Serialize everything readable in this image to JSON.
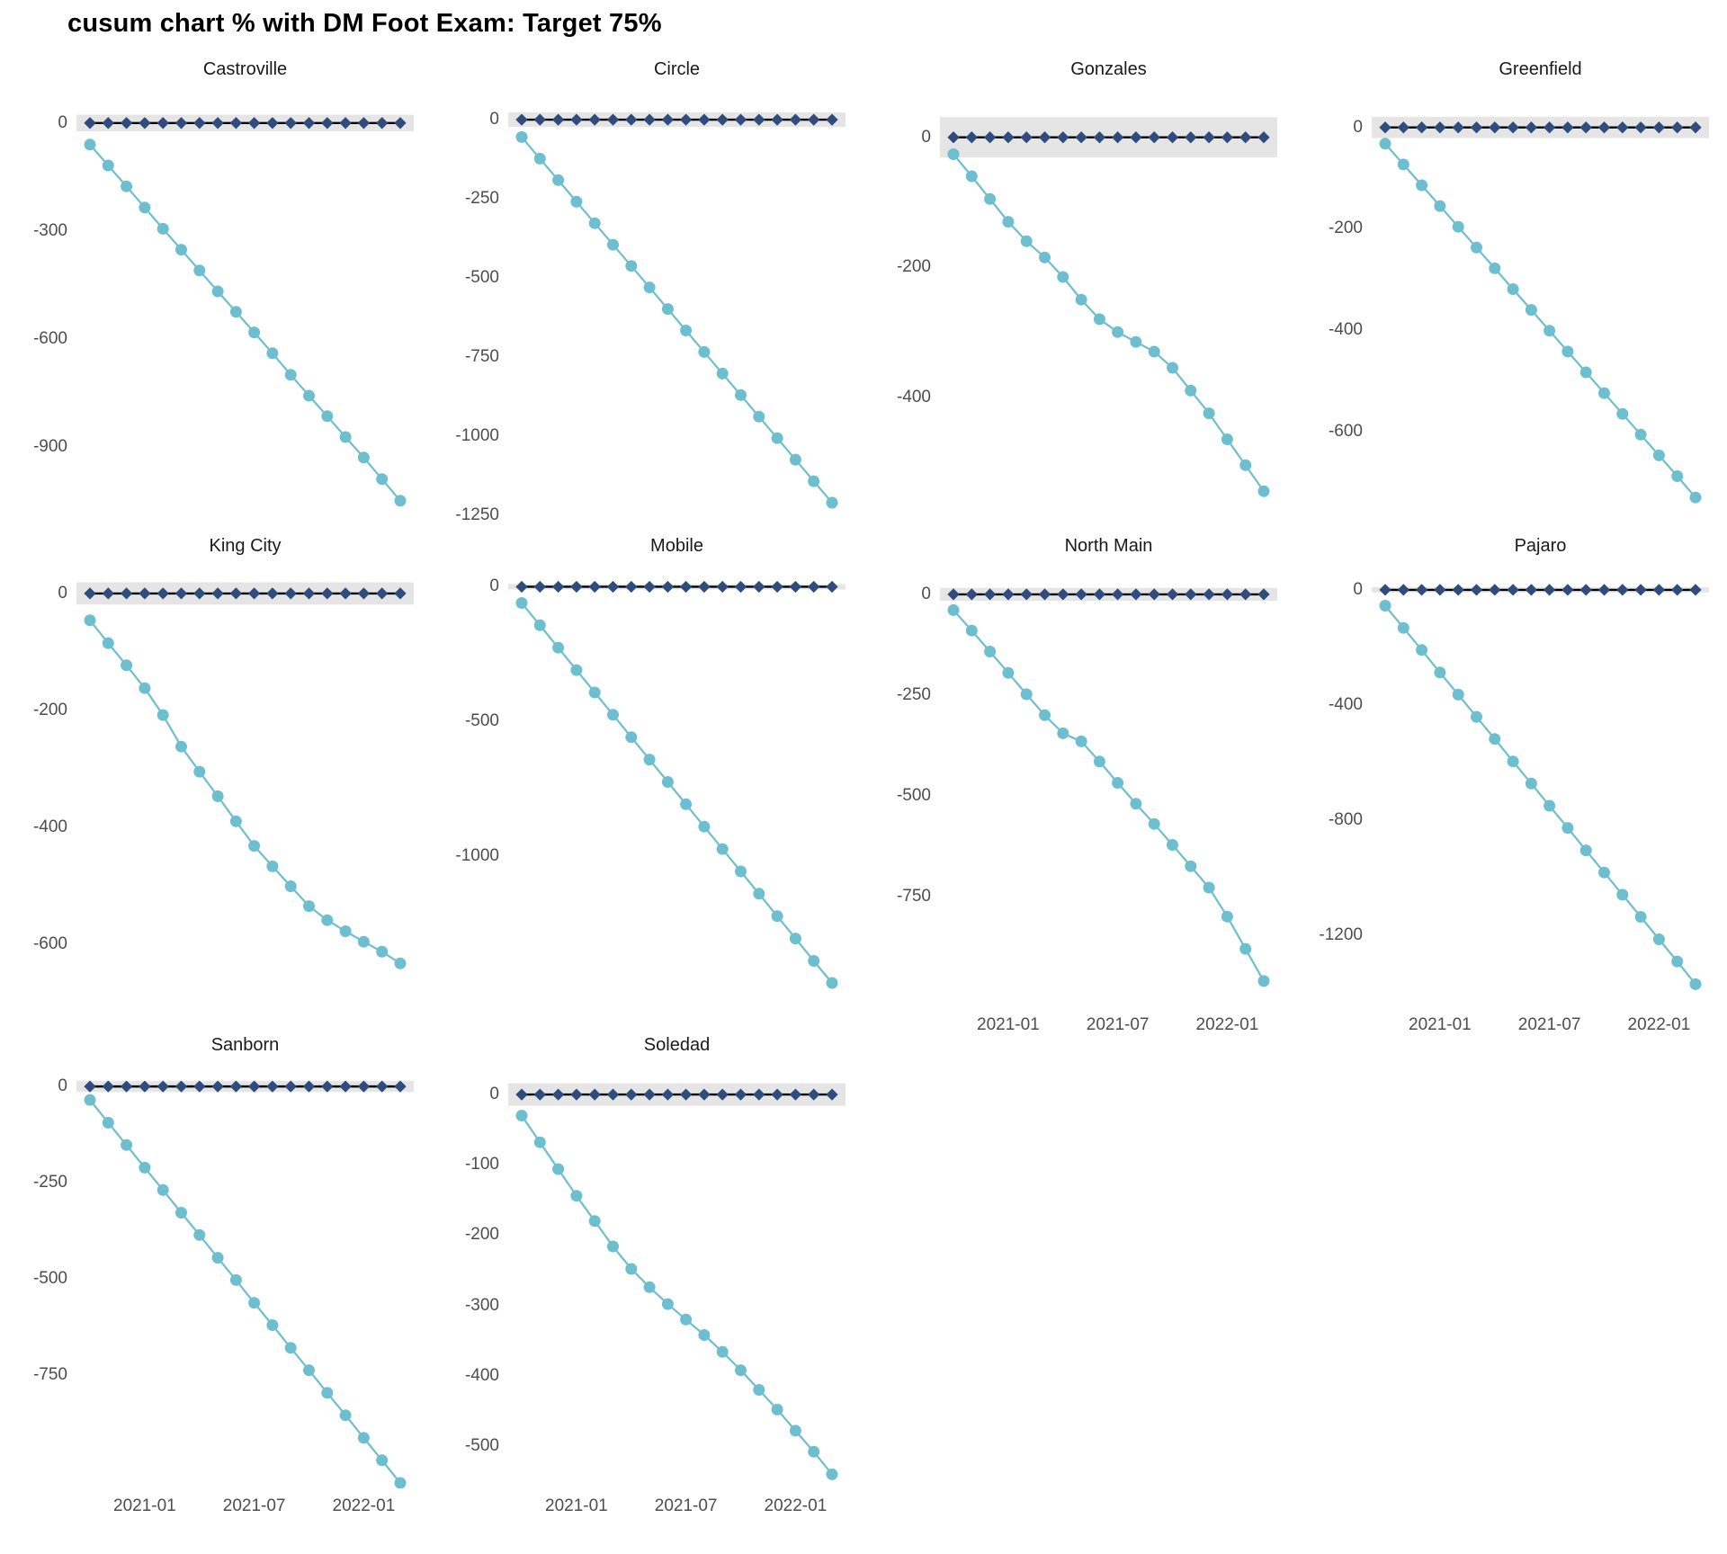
{
  "title": "cusum chart % with DM Foot Exam: Target 75%",
  "colors": {
    "cusum_line": "#6DBFD0",
    "reference_point": "#2F4C7D",
    "center_line": "#000000",
    "control_band": "#E5E5E5",
    "axis_text": "#4D4D4D",
    "strip_text": "#1A1A1A",
    "title_text": "#000000",
    "background": "#FFFFFF"
  },
  "x_axis": {
    "tick_labels": [
      "2021-01",
      "2021-07",
      "2022-01"
    ],
    "tick_month_indices": [
      3,
      9,
      15
    ]
  },
  "chart_data": {
    "type": "line",
    "x": [
      "2020-10",
      "2020-11",
      "2020-12",
      "2021-01",
      "2021-02",
      "2021-03",
      "2021-04",
      "2021-05",
      "2021-06",
      "2021-07",
      "2021-08",
      "2021-09",
      "2021-10",
      "2021-11",
      "2021-12",
      "2022-01",
      "2022-02",
      "2022-03"
    ],
    "reference_value": 0,
    "reference_series_note": "dark points plotted at 0 on black center line with gray control band",
    "facets": [
      {
        "name": "Castroville",
        "y_ticks": [
          {
            "label": "0",
            "value": 0
          },
          {
            "label": "-300",
            "value": -300
          },
          {
            "label": "-600",
            "value": -600
          },
          {
            "label": "-900",
            "value": -900
          }
        ],
        "control_band_halfwidth": 23,
        "ylim": [
          92,
          -1103
        ],
        "show_x_axis": false,
        "cusum": [
          -60,
          -118,
          -176,
          -235,
          -294,
          -352,
          -410,
          -468,
          -525,
          -582,
          -640,
          -700,
          -758,
          -815,
          -873,
          -930,
          -990,
          -1050
        ]
      },
      {
        "name": "Circle",
        "y_ticks": [
          {
            "label": "0",
            "value": 0
          },
          {
            "label": "-250",
            "value": -250
          },
          {
            "label": "-500",
            "value": -500
          },
          {
            "label": "-750",
            "value": -750
          },
          {
            "label": "-1000",
            "value": -1000
          },
          {
            "label": "-1250",
            "value": -1250
          }
        ],
        "control_band_halfwidth": 23,
        "ylim": [
          94,
          -1264
        ],
        "show_x_axis": false,
        "cusum": [
          -55,
          -123,
          -191,
          -259,
          -327,
          -395,
          -462,
          -530,
          -598,
          -666,
          -734,
          -802,
          -870,
          -938,
          -1006,
          -1074,
          -1142,
          -1210
        ]
      },
      {
        "name": "Gonzales",
        "y_ticks": [
          {
            "label": "0",
            "value": 0
          },
          {
            "label": "-200",
            "value": -200
          },
          {
            "label": "-400",
            "value": -400
          }
        ],
        "control_band_halfwidth": 31,
        "ylim": [
          73,
          -589
        ],
        "show_x_axis": false,
        "cusum": [
          -26,
          -60,
          -95,
          -130,
          -160,
          -185,
          -215,
          -250,
          -280,
          -300,
          -315,
          -330,
          -355,
          -390,
          -425,
          -465,
          -505,
          -545
        ]
      },
      {
        "name": "Greenfield",
        "y_ticks": [
          {
            "label": "0",
            "value": 0
          },
          {
            "label": "-200",
            "value": -200
          },
          {
            "label": "-400",
            "value": -400
          },
          {
            "label": "-600",
            "value": -600
          }
        ],
        "control_band_halfwidth": 21,
        "ylim": [
          74,
          -774
        ],
        "show_x_axis": false,
        "cusum": [
          -32,
          -73,
          -114,
          -155,
          -196,
          -237,
          -278,
          -319,
          -360,
          -401,
          -442,
          -483,
          -524,
          -565,
          -606,
          -647,
          -688,
          -730
        ]
      },
      {
        "name": "King City",
        "y_ticks": [
          {
            "label": "0",
            "value": 0
          },
          {
            "label": "-200",
            "value": -200
          },
          {
            "label": "-400",
            "value": -400
          },
          {
            "label": "-600",
            "value": -600
          }
        ],
        "control_band_halfwidth": 19,
        "ylim": [
          46,
          -708
        ],
        "show_x_axis": false,
        "cusum": [
          -46,
          -85,
          -123,
          -162,
          -208,
          -262,
          -305,
          -347,
          -390,
          -432,
          -467,
          -501,
          -535,
          -559,
          -578,
          -596,
          -613,
          -633
        ]
      },
      {
        "name": "Mobile",
        "y_ticks": [
          {
            "label": "0",
            "value": 0
          },
          {
            "label": "-500",
            "value": -500
          },
          {
            "label": "-1000",
            "value": -1000
          }
        ],
        "control_band_halfwidth": 10,
        "ylim": [
          75,
          -1560
        ],
        "show_x_axis": false,
        "cusum": [
          -60,
          -143,
          -226,
          -309,
          -392,
          -475,
          -558,
          -641,
          -724,
          -807,
          -890,
          -973,
          -1056,
          -1139,
          -1222,
          -1305,
          -1388,
          -1470
        ]
      },
      {
        "name": "North Main",
        "y_ticks": [
          {
            "label": "0",
            "value": 0
          },
          {
            "label": "-250",
            "value": -250
          },
          {
            "label": "-500",
            "value": -500
          },
          {
            "label": "-750",
            "value": -750
          }
        ],
        "control_band_halfwidth": 16,
        "ylim": [
          69,
          -1025
        ],
        "show_x_axis": true,
        "cusum": [
          -39,
          -90,
          -142,
          -195,
          -248,
          -300,
          -345,
          -365,
          -415,
          -468,
          -520,
          -570,
          -622,
          -675,
          -728,
          -800,
          -880,
          -960
        ]
      },
      {
        "name": "Pajaro",
        "y_ticks": [
          {
            "label": "0",
            "value": 0
          },
          {
            "label": "-400",
            "value": -400
          },
          {
            "label": "-800",
            "value": -800
          },
          {
            "label": "-1200",
            "value": -1200
          }
        ],
        "control_band_halfwidth": 9,
        "ylim": [
          81,
          -1450
        ],
        "show_x_axis": true,
        "cusum": [
          -55,
          -132,
          -209,
          -287,
          -364,
          -441,
          -518,
          -596,
          -673,
          -750,
          -827,
          -905,
          -982,
          -1059,
          -1136,
          -1214,
          -1291,
          -1370
        ]
      },
      {
        "name": "Sanborn",
        "y_ticks": [
          {
            "label": "0",
            "value": 0
          },
          {
            "label": "-250",
            "value": -250
          },
          {
            "label": "-500",
            "value": -500
          },
          {
            "label": "-750",
            "value": -750
          }
        ],
        "control_band_halfwidth": 14,
        "ylim": [
          54,
          -1044
        ],
        "show_x_axis": true,
        "cusum": [
          -35,
          -94,
          -152,
          -211,
          -269,
          -328,
          -386,
          -445,
          -503,
          -562,
          -620,
          -679,
          -737,
          -796,
          -854,
          -913,
          -971,
          -1030
        ]
      },
      {
        "name": "Soledad",
        "y_ticks": [
          {
            "label": "0",
            "value": 0
          },
          {
            "label": "-100",
            "value": -100
          },
          {
            "label": "-200",
            "value": -200
          },
          {
            "label": "-300",
            "value": -300
          },
          {
            "label": "-400",
            "value": -400
          },
          {
            "label": "-500",
            "value": -500
          }
        ],
        "control_band_halfwidth": 16,
        "ylim": [
          41,
          -560
        ],
        "show_x_axis": true,
        "cusum": [
          -30,
          -68,
          -106,
          -144,
          -180,
          -216,
          -248,
          -274,
          -298,
          -320,
          -342,
          -366,
          -392,
          -420,
          -448,
          -478,
          -508,
          -540
        ]
      }
    ]
  }
}
